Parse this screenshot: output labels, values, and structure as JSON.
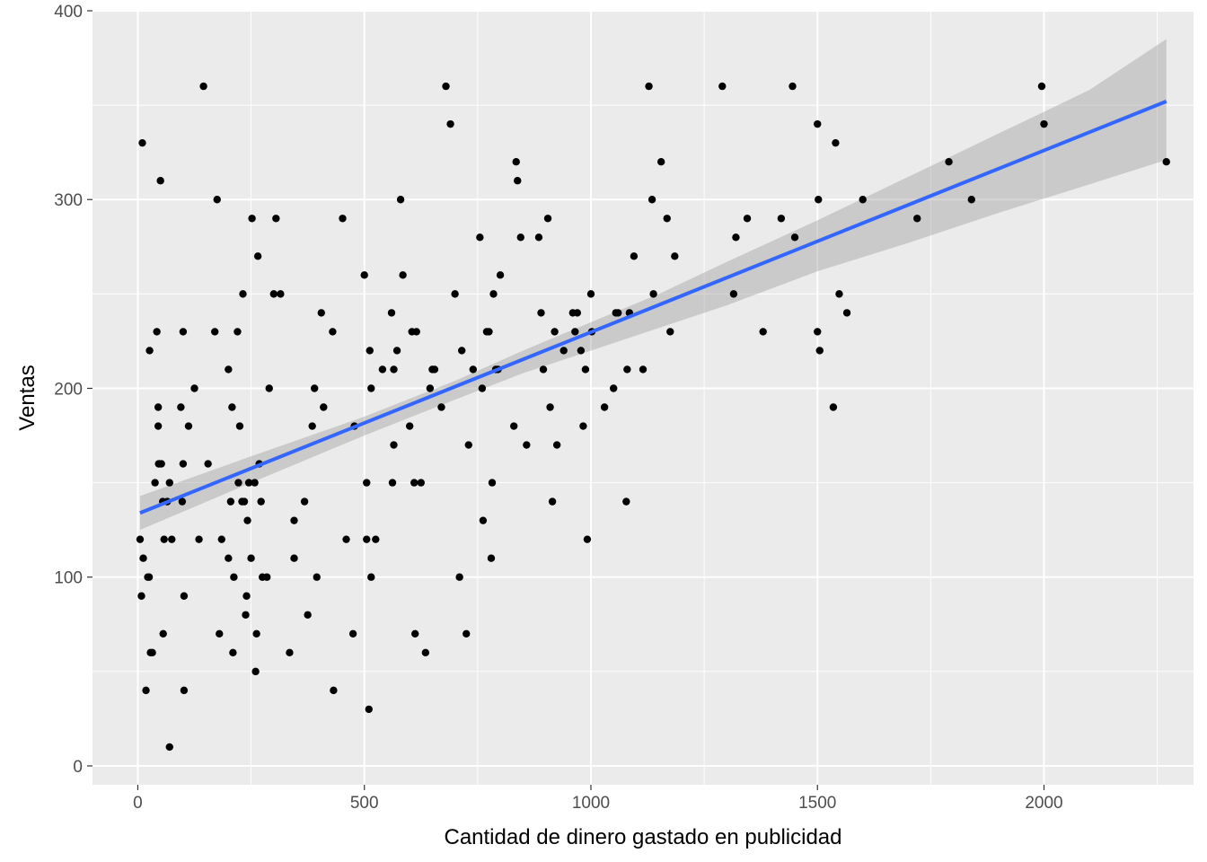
{
  "chart_data": {
    "type": "scatter",
    "title": "",
    "xlabel": "Cantidad de dinero gastado en publicidad",
    "ylabel": "Ventas",
    "xlim": [
      -100,
      2330
    ],
    "ylim": [
      -10,
      400
    ],
    "x_ticks": [
      0,
      500,
      1000,
      1500,
      2000
    ],
    "y_ticks": [
      0,
      100,
      200,
      300,
      400
    ],
    "x_tick_labels": [
      "0",
      "500",
      "1000",
      "1500",
      "2000"
    ],
    "y_tick_labels": [
      "0",
      "100",
      "200",
      "300",
      "400"
    ],
    "grid": true,
    "legend": "none",
    "colors": {
      "panel": "#EBEBEB",
      "grid": "#FFFFFF",
      "points": "#000000",
      "fit_line": "#3366FF",
      "confidence_band": "#999999"
    },
    "points": [
      [
        10,
        330
      ],
      [
        5,
        120
      ],
      [
        8,
        90
      ],
      [
        12,
        110
      ],
      [
        18,
        40
      ],
      [
        22,
        100
      ],
      [
        25,
        100
      ],
      [
        26,
        220
      ],
      [
        28,
        60
      ],
      [
        32,
        60
      ],
      [
        38,
        150
      ],
      [
        42,
        230
      ],
      [
        45,
        190
      ],
      [
        45,
        180
      ],
      [
        46,
        160
      ],
      [
        48,
        160
      ],
      [
        50,
        310
      ],
      [
        52,
        160
      ],
      [
        55,
        140
      ],
      [
        56,
        70
      ],
      [
        58,
        120
      ],
      [
        65,
        140
      ],
      [
        70,
        150
      ],
      [
        70,
        10
      ],
      [
        75,
        120
      ],
      [
        95,
        190
      ],
      [
        98,
        140
      ],
      [
        100,
        230
      ],
      [
        100,
        160
      ],
      [
        102,
        90
      ],
      [
        102,
        40
      ],
      [
        112,
        180
      ],
      [
        125,
        200
      ],
      [
        135,
        120
      ],
      [
        145,
        360
      ],
      [
        155,
        160
      ],
      [
        170,
        230
      ],
      [
        175,
        300
      ],
      [
        180,
        70
      ],
      [
        185,
        120
      ],
      [
        200,
        110
      ],
      [
        200,
        210
      ],
      [
        205,
        140
      ],
      [
        208,
        190
      ],
      [
        210,
        60
      ],
      [
        212,
        100
      ],
      [
        220,
        230
      ],
      [
        222,
        150
      ],
      [
        225,
        180
      ],
      [
        230,
        140
      ],
      [
        232,
        250
      ],
      [
        235,
        140
      ],
      [
        238,
        80
      ],
      [
        240,
        90
      ],
      [
        242,
        130
      ],
      [
        245,
        150
      ],
      [
        250,
        110
      ],
      [
        252,
        290
      ],
      [
        258,
        150
      ],
      [
        260,
        50
      ],
      [
        262,
        70
      ],
      [
        265,
        270
      ],
      [
        268,
        160
      ],
      [
        272,
        140
      ],
      [
        275,
        100
      ],
      [
        285,
        100
      ],
      [
        290,
        200
      ],
      [
        300,
        250
      ],
      [
        305,
        290
      ],
      [
        315,
        250
      ],
      [
        335,
        60
      ],
      [
        345,
        110
      ],
      [
        345,
        130
      ],
      [
        368,
        140
      ],
      [
        375,
        80
      ],
      [
        385,
        180
      ],
      [
        390,
        200
      ],
      [
        395,
        100
      ],
      [
        405,
        240
      ],
      [
        410,
        190
      ],
      [
        430,
        230
      ],
      [
        432,
        40
      ],
      [
        452,
        290
      ],
      [
        460,
        120
      ],
      [
        475,
        70
      ],
      [
        478,
        180
      ],
      [
        500,
        260
      ],
      [
        505,
        150
      ],
      [
        505,
        120
      ],
      [
        510,
        30
      ],
      [
        512,
        220
      ],
      [
        515,
        200
      ],
      [
        515,
        100
      ],
      [
        525,
        120
      ],
      [
        540,
        210
      ],
      [
        560,
        240
      ],
      [
        562,
        150
      ],
      [
        565,
        170
      ],
      [
        565,
        210
      ],
      [
        572,
        220
      ],
      [
        580,
        300
      ],
      [
        585,
        260
      ],
      [
        600,
        180
      ],
      [
        605,
        230
      ],
      [
        610,
        150
      ],
      [
        612,
        70
      ],
      [
        615,
        230
      ],
      [
        625,
        150
      ],
      [
        635,
        60
      ],
      [
        645,
        200
      ],
      [
        650,
        210
      ],
      [
        655,
        210
      ],
      [
        670,
        190
      ],
      [
        680,
        360
      ],
      [
        690,
        340
      ],
      [
        700,
        250
      ],
      [
        710,
        100
      ],
      [
        715,
        220
      ],
      [
        725,
        70
      ],
      [
        730,
        170
      ],
      [
        740,
        210
      ],
      [
        755,
        280
      ],
      [
        760,
        200
      ],
      [
        762,
        130
      ],
      [
        770,
        230
      ],
      [
        775,
        230
      ],
      [
        780,
        110
      ],
      [
        782,
        150
      ],
      [
        785,
        250
      ],
      [
        790,
        210
      ],
      [
        795,
        210
      ],
      [
        800,
        260
      ],
      [
        830,
        180
      ],
      [
        835,
        320
      ],
      [
        838,
        310
      ],
      [
        845,
        280
      ],
      [
        858,
        170
      ],
      [
        885,
        280
      ],
      [
        890,
        240
      ],
      [
        895,
        210
      ],
      [
        905,
        290
      ],
      [
        910,
        190
      ],
      [
        915,
        140
      ],
      [
        920,
        230
      ],
      [
        925,
        170
      ],
      [
        940,
        220
      ],
      [
        960,
        240
      ],
      [
        965,
        230
      ],
      [
        970,
        240
      ],
      [
        978,
        220
      ],
      [
        983,
        180
      ],
      [
        988,
        210
      ],
      [
        992,
        120
      ],
      [
        1000,
        250
      ],
      [
        1002,
        230
      ],
      [
        1030,
        190
      ],
      [
        1050,
        200
      ],
      [
        1055,
        240
      ],
      [
        1060,
        240
      ],
      [
        1078,
        140
      ],
      [
        1080,
        210
      ],
      [
        1085,
        240
      ],
      [
        1095,
        270
      ],
      [
        1115,
        210
      ],
      [
        1128,
        360
      ],
      [
        1135,
        300
      ],
      [
        1138,
        250
      ],
      [
        1155,
        320
      ],
      [
        1168,
        290
      ],
      [
        1175,
        230
      ],
      [
        1185,
        270
      ],
      [
        1290,
        360
      ],
      [
        1315,
        250
      ],
      [
        1320,
        280
      ],
      [
        1345,
        290
      ],
      [
        1380,
        230
      ],
      [
        1420,
        290
      ],
      [
        1445,
        360
      ],
      [
        1450,
        280
      ],
      [
        1500,
        340
      ],
      [
        1500,
        230
      ],
      [
        1502,
        300
      ],
      [
        1505,
        220
      ],
      [
        1535,
        190
      ],
      [
        1540,
        330
      ],
      [
        1548,
        250
      ],
      [
        1565,
        240
      ],
      [
        1600,
        300
      ],
      [
        1720,
        290
      ],
      [
        1790,
        320
      ],
      [
        1840,
        300
      ],
      [
        1995,
        360
      ],
      [
        2000,
        340
      ],
      [
        2270,
        320
      ]
    ],
    "regression_line": {
      "x": [
        5,
        2270
      ],
      "y": [
        134,
        352
      ]
    },
    "confidence_band": {
      "x": [
        5,
        250,
        500,
        700,
        850,
        1000,
        1150,
        1300,
        1500,
        1700,
        1900,
        2100,
        2270
      ],
      "lower": [
        125,
        150,
        175,
        194,
        208,
        220,
        232,
        244,
        262,
        277,
        293,
        308,
        321
      ],
      "upper": [
        143,
        164,
        185,
        204,
        220,
        235,
        250,
        267,
        289,
        312,
        335,
        358,
        385
      ]
    }
  }
}
